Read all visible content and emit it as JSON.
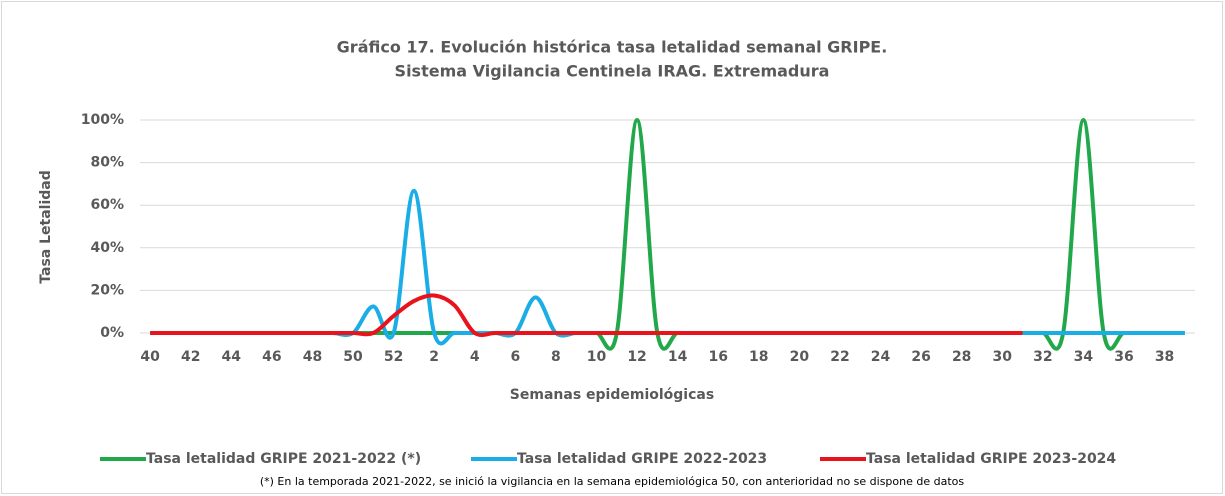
{
  "chart_data": {
    "type": "line",
    "title": [
      "Gráfico 17. Evolución histórica tasa letalidad semanal GRIPE.",
      "Sistema  Vigilancia Centinela IRAG. Extremadura"
    ],
    "x_label": "Semanas epidemiológicas",
    "y_label": "Tasa Letalidad",
    "note": "(*) En la temporada 2021-2022, se inició la vigilancia en la semana epidemiológica 50, con anterioridad no se dispone de datos",
    "categories": [
      "40",
      null,
      "42",
      null,
      "44",
      null,
      "46",
      null,
      "48",
      null,
      "50",
      null,
      "52",
      null,
      "2",
      null,
      "4",
      null,
      "6",
      null,
      "8",
      null,
      "10",
      null,
      "12",
      null,
      "14",
      null,
      "16",
      null,
      "18",
      null,
      "20",
      null,
      "22",
      null,
      "24",
      null,
      "26",
      null,
      "28",
      null,
      "30",
      null,
      "32",
      null,
      "34",
      null,
      "36",
      null,
      "38",
      null
    ],
    "series": [
      {
        "name": "Tasa letalidad GRIPE 2021-2022 (*)",
        "color": "#21a84a",
        "values": [
          null,
          null,
          null,
          null,
          null,
          null,
          null,
          null,
          null,
          null,
          0,
          0,
          0,
          0,
          0,
          0,
          0,
          0,
          0,
          0,
          0,
          0,
          0,
          0,
          100,
          0,
          0,
          0,
          0,
          0,
          0,
          0,
          0,
          0,
          0,
          0,
          0,
          0,
          0,
          0,
          0,
          0,
          0,
          0,
          0,
          0,
          100,
          0,
          0,
          0,
          0,
          0
        ]
      },
      {
        "name": "Tasa letalidad GRIPE 2022-2023",
        "color": "#1aade6",
        "values": [
          0,
          0,
          0,
          0,
          0,
          0,
          0,
          0,
          0,
          0,
          0,
          12.5,
          0,
          66.7,
          0,
          0,
          0,
          0,
          0,
          16.7,
          0,
          0,
          0,
          0,
          0,
          0,
          0,
          0,
          0,
          0,
          0,
          0,
          0,
          0,
          0,
          0,
          0,
          0,
          0,
          0,
          0,
          0,
          0,
          0,
          0,
          0,
          0,
          0,
          0,
          0,
          0,
          0
        ]
      },
      {
        "name": "Tasa letalidad GRIPE 2023-2024",
        "color": "#e8131b",
        "values": [
          0,
          0,
          0,
          0,
          0,
          0,
          0,
          0,
          0,
          0,
          0,
          0,
          8,
          15,
          17.6,
          13,
          0,
          0,
          0,
          0,
          0,
          0,
          0,
          0,
          0,
          0,
          0,
          0,
          0,
          0,
          0,
          0,
          0,
          0,
          0,
          0,
          0,
          0,
          0,
          0,
          0,
          0,
          0,
          0,
          null,
          null,
          null,
          null,
          null,
          null,
          null,
          null
        ]
      }
    ],
    "ylim": [
      0,
      100
    ],
    "yticks": [
      {
        "value": 0,
        "label": "0%"
      },
      {
        "value": 20,
        "label": "20%"
      },
      {
        "value": 40,
        "label": "40%"
      },
      {
        "value": 60,
        "label": "60%"
      },
      {
        "value": 80,
        "label": "80%"
      },
      {
        "value": 100,
        "label": "100%"
      }
    ],
    "grid": true,
    "legend": "bottom"
  }
}
